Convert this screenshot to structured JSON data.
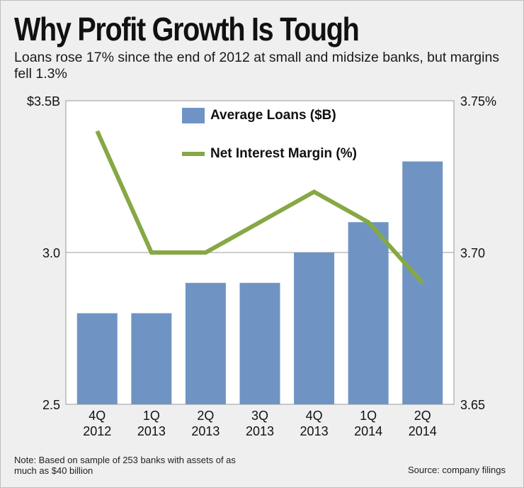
{
  "header": {
    "title": "Why Profit Growth Is Tough",
    "subtitle": "Loans rose 17% since the end of 2012 at small and midsize banks, but margins fell 1.3%"
  },
  "footer": {
    "note": "Note: Based on sample of 253 banks with assets of as much as $40 billion",
    "source": "Source: company filings"
  },
  "colors": {
    "bar": "#6f94c4",
    "line": "#86a845",
    "background": "#efefef"
  },
  "chart_data": {
    "type": "bar",
    "title": "Why Profit Growth Is Tough",
    "categories": [
      [
        "4Q",
        "2012"
      ],
      [
        "1Q",
        "2013"
      ],
      [
        "2Q",
        "2013"
      ],
      [
        "3Q",
        "2013"
      ],
      [
        "4Q",
        "2013"
      ],
      [
        "1Q",
        "2014"
      ],
      [
        "2Q",
        "2014"
      ]
    ],
    "series": [
      {
        "name": "Average Loans ($B)",
        "type": "bar",
        "axis": "left",
        "values": [
          2.8,
          2.8,
          2.9,
          2.9,
          3.0,
          3.1,
          3.3
        ]
      },
      {
        "name": "Net Interest Margin (%)",
        "type": "line",
        "axis": "right",
        "values": [
          3.74,
          3.7,
          3.7,
          3.71,
          3.72,
          3.71,
          3.69
        ]
      }
    ],
    "y_left": {
      "ylim": [
        2.5,
        3.5
      ],
      "ticks": [
        2.5,
        3.0,
        3.5
      ],
      "tick_labels": [
        "2.5",
        "3.0",
        "$3.5B"
      ]
    },
    "y_right": {
      "ylim": [
        3.65,
        3.75
      ],
      "ticks": [
        3.65,
        3.7,
        3.75
      ],
      "tick_labels": [
        "3.65",
        "3.70",
        "3.75%"
      ]
    },
    "grid": true,
    "legend_position": "top-center"
  }
}
